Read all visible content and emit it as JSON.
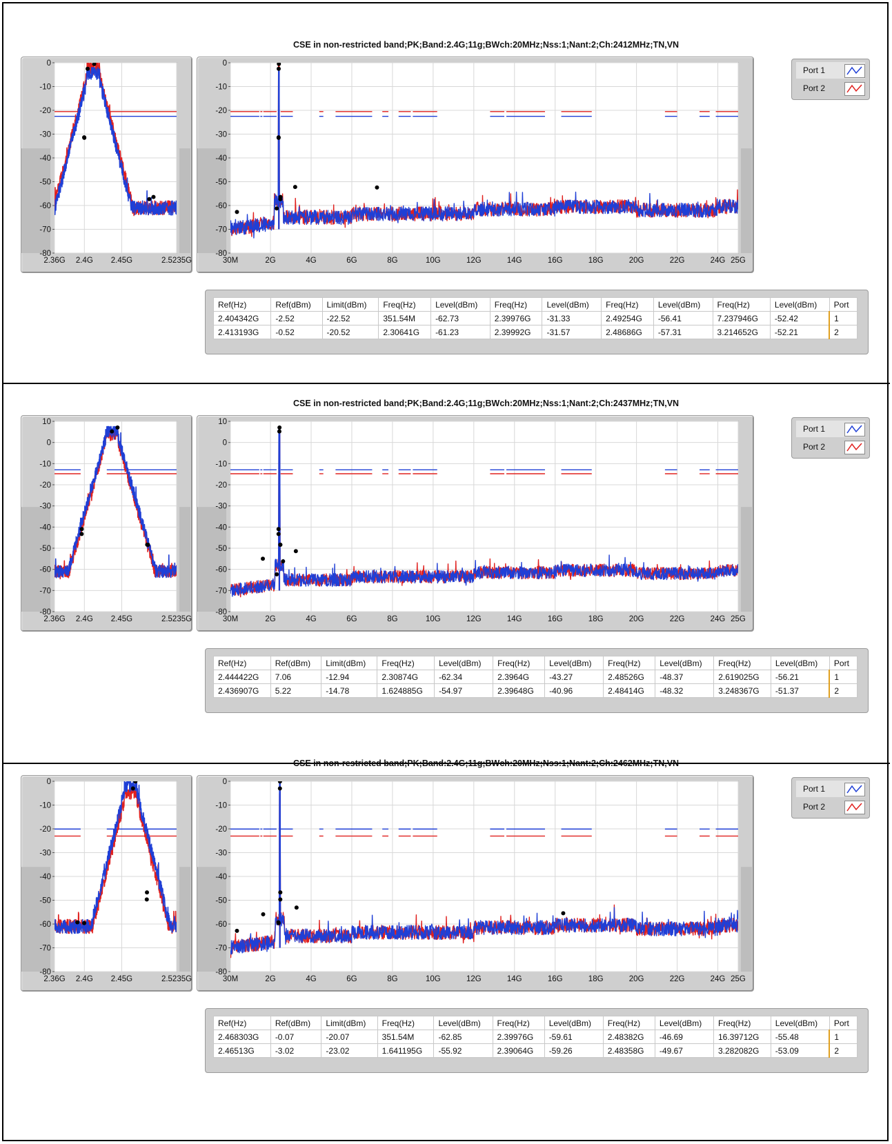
{
  "table_headers": [
    "Ref(Hz)",
    "Ref(dBm)",
    "Limit(dBm)",
    "Freq(Hz)",
    "Level(dBm)",
    "Freq(Hz)",
    "Level(dBm)",
    "Freq(Hz)",
    "Level(dBm)",
    "Freq(Hz)",
    "Level(dBm)",
    "Port"
  ],
  "legend": [
    {
      "label": "Port 1",
      "color": "#1f3fd6"
    },
    {
      "label": "Port 2",
      "color": "#e0201e"
    }
  ],
  "colors": {
    "port1": "#1f3fd6",
    "port2": "#e0201e",
    "marker": "#000000",
    "plot_bg": "#ffffff",
    "panel": "#cfcfcf"
  },
  "chart_data": [
    {
      "type": "line",
      "title": "CSE in non-restricted band;PK;Band:2.4G;11g;BWch:20MHz;Nss:1;Nant:2;Ch:2412MHz;TN,VN",
      "center_ghz": 2.412,
      "zoom": {
        "xlim": [
          2.36,
          2.5235
        ],
        "x_ticks": [
          "2.36G",
          "2.4G",
          "2.45G",
          "2.5235G"
        ],
        "x_tick_values": [
          2.36,
          2.4,
          2.45,
          2.5235
        ],
        "ylim": [
          -80,
          0
        ],
        "y_ticks": [
          0,
          -10,
          -20,
          -30,
          -40,
          -50,
          -60,
          -70,
          -80
        ]
      },
      "full": {
        "xlim": [
          0.03,
          25
        ],
        "x_ticks": [
          "30M",
          "2G",
          "4G",
          "6G",
          "8G",
          "10G",
          "12G",
          "14G",
          "16G",
          "18G",
          "20G",
          "22G",
          "24G",
          "25G"
        ],
        "x_tick_values": [
          0.03,
          2,
          4,
          6,
          8,
          10,
          12,
          14,
          16,
          18,
          20,
          22,
          24,
          25
        ],
        "ylim": [
          -80,
          0
        ],
        "y_ticks": [
          0,
          -10,
          -20,
          -30,
          -40,
          -50,
          -60,
          -70,
          -80
        ]
      },
      "limits": [
        {
          "port": 1,
          "value": -22.52
        },
        {
          "port": 2,
          "value": -20.52
        }
      ],
      "rows": [
        [
          "2.404342G",
          "-2.52",
          "-22.52",
          "351.54M",
          "-62.73",
          "2.39976G",
          "-31.33",
          "2.49254G",
          "-56.41",
          "7.237946G",
          "-52.42",
          "1"
        ],
        [
          "2.413193G",
          "-0.52",
          "-20.52",
          "2.30641G",
          "-61.23",
          "2.39992G",
          "-31.57",
          "2.48686G",
          "-57.31",
          "3.214652G",
          "-52.21",
          "2"
        ]
      ],
      "markers": [
        {
          "x_ghz": 2.404342,
          "dbm": -2.52
        },
        {
          "x_ghz": 2.413193,
          "dbm": -0.52
        },
        {
          "x_ghz": 0.35154,
          "dbm": -62.73
        },
        {
          "x_ghz": 2.30641,
          "dbm": -61.23
        },
        {
          "x_ghz": 2.39976,
          "dbm": -31.33
        },
        {
          "x_ghz": 2.39992,
          "dbm": -31.57
        },
        {
          "x_ghz": 2.49254,
          "dbm": -56.41
        },
        {
          "x_ghz": 2.48686,
          "dbm": -57.31
        },
        {
          "x_ghz": 7.237946,
          "dbm": -52.42
        },
        {
          "x_ghz": 3.214652,
          "dbm": -52.21
        }
      ]
    },
    {
      "type": "line",
      "title": "CSE in non-restricted band;PK;Band:2.4G;11g;BWch:20MHz;Nss:1;Nant:2;Ch:2437MHz;TN,VN",
      "center_ghz": 2.437,
      "zoom": {
        "xlim": [
          2.36,
          2.5235
        ],
        "x_ticks": [
          "2.36G",
          "2.4G",
          "2.45G",
          "2.5235G"
        ],
        "x_tick_values": [
          2.36,
          2.4,
          2.45,
          2.5235
        ],
        "ylim": [
          -80,
          10
        ],
        "y_ticks": [
          10,
          0,
          -10,
          -20,
          -30,
          -40,
          -50,
          -60,
          -70,
          -80
        ]
      },
      "full": {
        "xlim": [
          0.03,
          25
        ],
        "x_ticks": [
          "30M",
          "2G",
          "4G",
          "6G",
          "8G",
          "10G",
          "12G",
          "14G",
          "16G",
          "18G",
          "20G",
          "22G",
          "24G",
          "25G"
        ],
        "x_tick_values": [
          0.03,
          2,
          4,
          6,
          8,
          10,
          12,
          14,
          16,
          18,
          20,
          22,
          24,
          25
        ],
        "ylim": [
          -80,
          10
        ],
        "y_ticks": [
          10,
          0,
          -10,
          -20,
          -30,
          -40,
          -50,
          -60,
          -70,
          -80
        ]
      },
      "limits": [
        {
          "port": 1,
          "value": -12.94
        },
        {
          "port": 2,
          "value": -14.78
        }
      ],
      "rows": [
        [
          "2.444422G",
          "7.06",
          "-12.94",
          "2.30874G",
          "-62.34",
          "2.3964G",
          "-43.27",
          "2.48526G",
          "-48.37",
          "2.619025G",
          "-56.21",
          "1"
        ],
        [
          "2.436907G",
          "5.22",
          "-14.78",
          "1.624885G",
          "-54.97",
          "2.39648G",
          "-40.96",
          "2.48414G",
          "-48.32",
          "3.248367G",
          "-51.37",
          "2"
        ]
      ],
      "markers": [
        {
          "x_ghz": 2.444422,
          "dbm": 7.06
        },
        {
          "x_ghz": 2.436907,
          "dbm": 5.22
        },
        {
          "x_ghz": 2.30874,
          "dbm": -62.34
        },
        {
          "x_ghz": 1.624885,
          "dbm": -54.97
        },
        {
          "x_ghz": 2.3964,
          "dbm": -43.27
        },
        {
          "x_ghz": 2.39648,
          "dbm": -40.96
        },
        {
          "x_ghz": 2.48526,
          "dbm": -48.37
        },
        {
          "x_ghz": 2.48414,
          "dbm": -48.32
        },
        {
          "x_ghz": 2.619025,
          "dbm": -56.21
        },
        {
          "x_ghz": 3.248367,
          "dbm": -51.37
        }
      ]
    },
    {
      "type": "line",
      "title": "CSE in non-restricted band;PK;Band:2.4G;11g;BWch:20MHz;Nss:1;Nant:2;Ch:2462MHz;TN,VN",
      "center_ghz": 2.462,
      "zoom": {
        "xlim": [
          2.36,
          2.5235
        ],
        "x_ticks": [
          "2.36G",
          "2.4G",
          "2.45G",
          "2.5235G"
        ],
        "x_tick_values": [
          2.36,
          2.4,
          2.45,
          2.5235
        ],
        "ylim": [
          -80,
          0
        ],
        "y_ticks": [
          0,
          -10,
          -20,
          -30,
          -40,
          -50,
          -60,
          -70,
          -80
        ]
      },
      "full": {
        "xlim": [
          0.03,
          25
        ],
        "x_ticks": [
          "30M",
          "2G",
          "4G",
          "6G",
          "8G",
          "10G",
          "12G",
          "14G",
          "16G",
          "18G",
          "20G",
          "22G",
          "24G",
          "25G"
        ],
        "x_tick_values": [
          0.03,
          2,
          4,
          6,
          8,
          10,
          12,
          14,
          16,
          18,
          20,
          22,
          24,
          25
        ],
        "ylim": [
          -80,
          0
        ],
        "y_ticks": [
          0,
          -10,
          -20,
          -30,
          -40,
          -50,
          -60,
          -70,
          -80
        ]
      },
      "limits": [
        {
          "port": 1,
          "value": -20.07
        },
        {
          "port": 2,
          "value": -23.02
        }
      ],
      "rows": [
        [
          "2.468303G",
          "-0.07",
          "-20.07",
          "351.54M",
          "-62.85",
          "2.39976G",
          "-59.61",
          "2.48382G",
          "-46.69",
          "16.39712G",
          "-55.48",
          "1"
        ],
        [
          "2.46513G",
          "-3.02",
          "-23.02",
          "1.641195G",
          "-55.92",
          "2.39064G",
          "-59.26",
          "2.48358G",
          "-49.67",
          "3.282082G",
          "-53.09",
          "2"
        ]
      ],
      "markers": [
        {
          "x_ghz": 2.468303,
          "dbm": -0.07
        },
        {
          "x_ghz": 2.46513,
          "dbm": -3.02
        },
        {
          "x_ghz": 0.35154,
          "dbm": -62.85
        },
        {
          "x_ghz": 1.641195,
          "dbm": -55.92
        },
        {
          "x_ghz": 2.39976,
          "dbm": -59.61
        },
        {
          "x_ghz": 2.39064,
          "dbm": -59.26
        },
        {
          "x_ghz": 2.48382,
          "dbm": -46.69
        },
        {
          "x_ghz": 2.48358,
          "dbm": -49.67
        },
        {
          "x_ghz": 16.39712,
          "dbm": -55.48
        },
        {
          "x_ghz": 3.282082,
          "dbm": -53.09
        }
      ]
    }
  ]
}
